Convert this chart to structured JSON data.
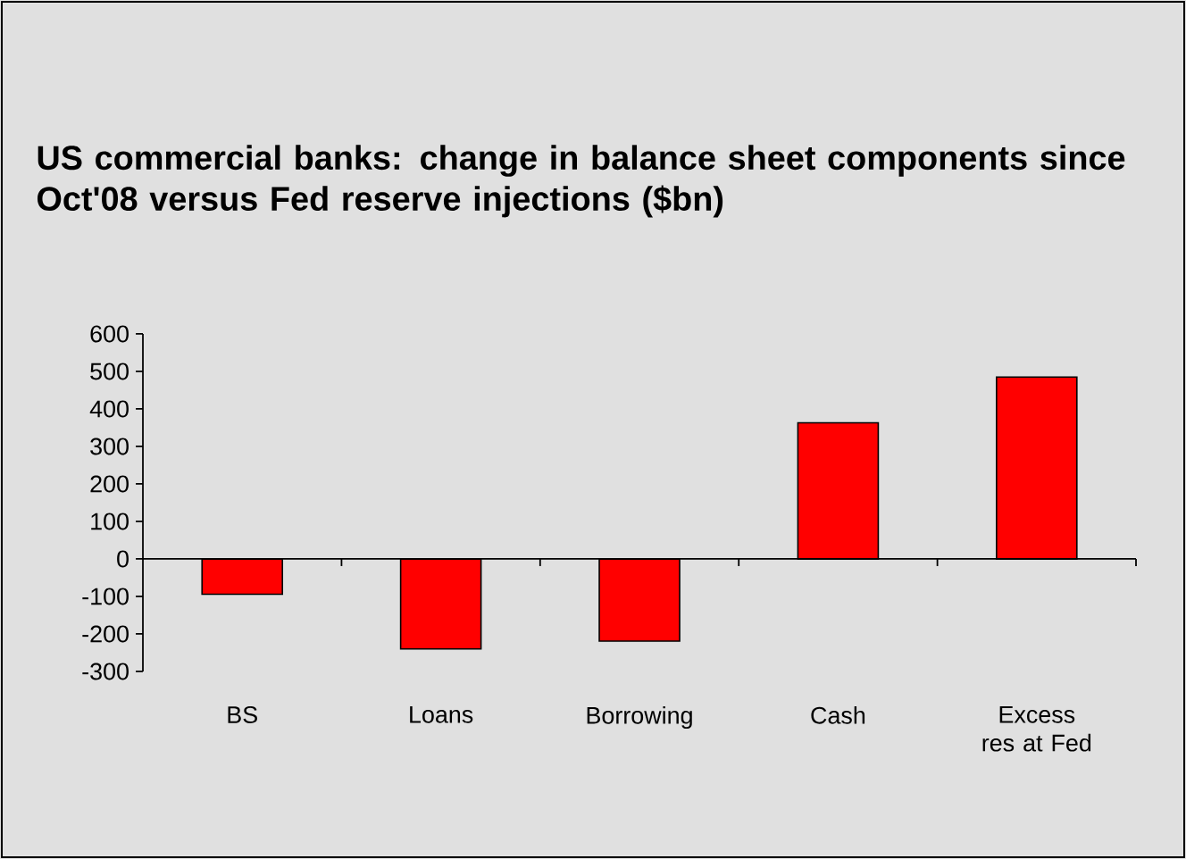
{
  "chart_data": {
    "type": "bar",
    "title": "US commercial banks: change in balance sheet components since Oct'08 versus Fed reserve injections ($bn)",
    "categories": [
      "BS",
      "Loans",
      "Borrowing",
      "Cash",
      "Excess res at Fed"
    ],
    "values": [
      -94,
      -240,
      -219,
      363,
      485
    ],
    "color": "#ff0000",
    "ylim": [
      -300,
      600
    ],
    "yticks": [
      -300,
      -200,
      -100,
      0,
      100,
      200,
      300,
      400,
      500,
      600
    ]
  }
}
